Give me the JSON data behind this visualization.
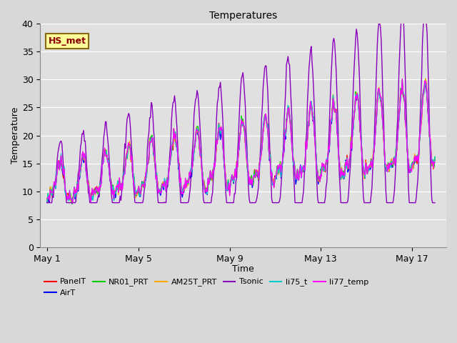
{
  "title": "Temperatures",
  "xlabel": "Time",
  "ylabel": "Temperature",
  "ylim": [
    0,
    40
  ],
  "yticks": [
    0,
    5,
    10,
    15,
    20,
    25,
    30,
    35,
    40
  ],
  "xtick_labels": [
    "May 1",
    "May 5",
    "May 9",
    "May 13",
    "May 17"
  ],
  "xtick_positions": [
    0,
    4,
    8,
    12,
    16
  ],
  "annotation_text": "HS_met",
  "series_names": [
    "PanelT",
    "AirT",
    "NR01_PRT",
    "AM25T_PRT",
    "Tsonic",
    "li75_t",
    "li77_temp"
  ],
  "series_colors": [
    "#ff0000",
    "#0000ff",
    "#00cc00",
    "#ffaa00",
    "#8800bb",
    "#00cccc",
    "#ff00ff"
  ],
  "n_points": 500,
  "fig_width": 6.4,
  "fig_height": 4.8,
  "dpi": 100
}
